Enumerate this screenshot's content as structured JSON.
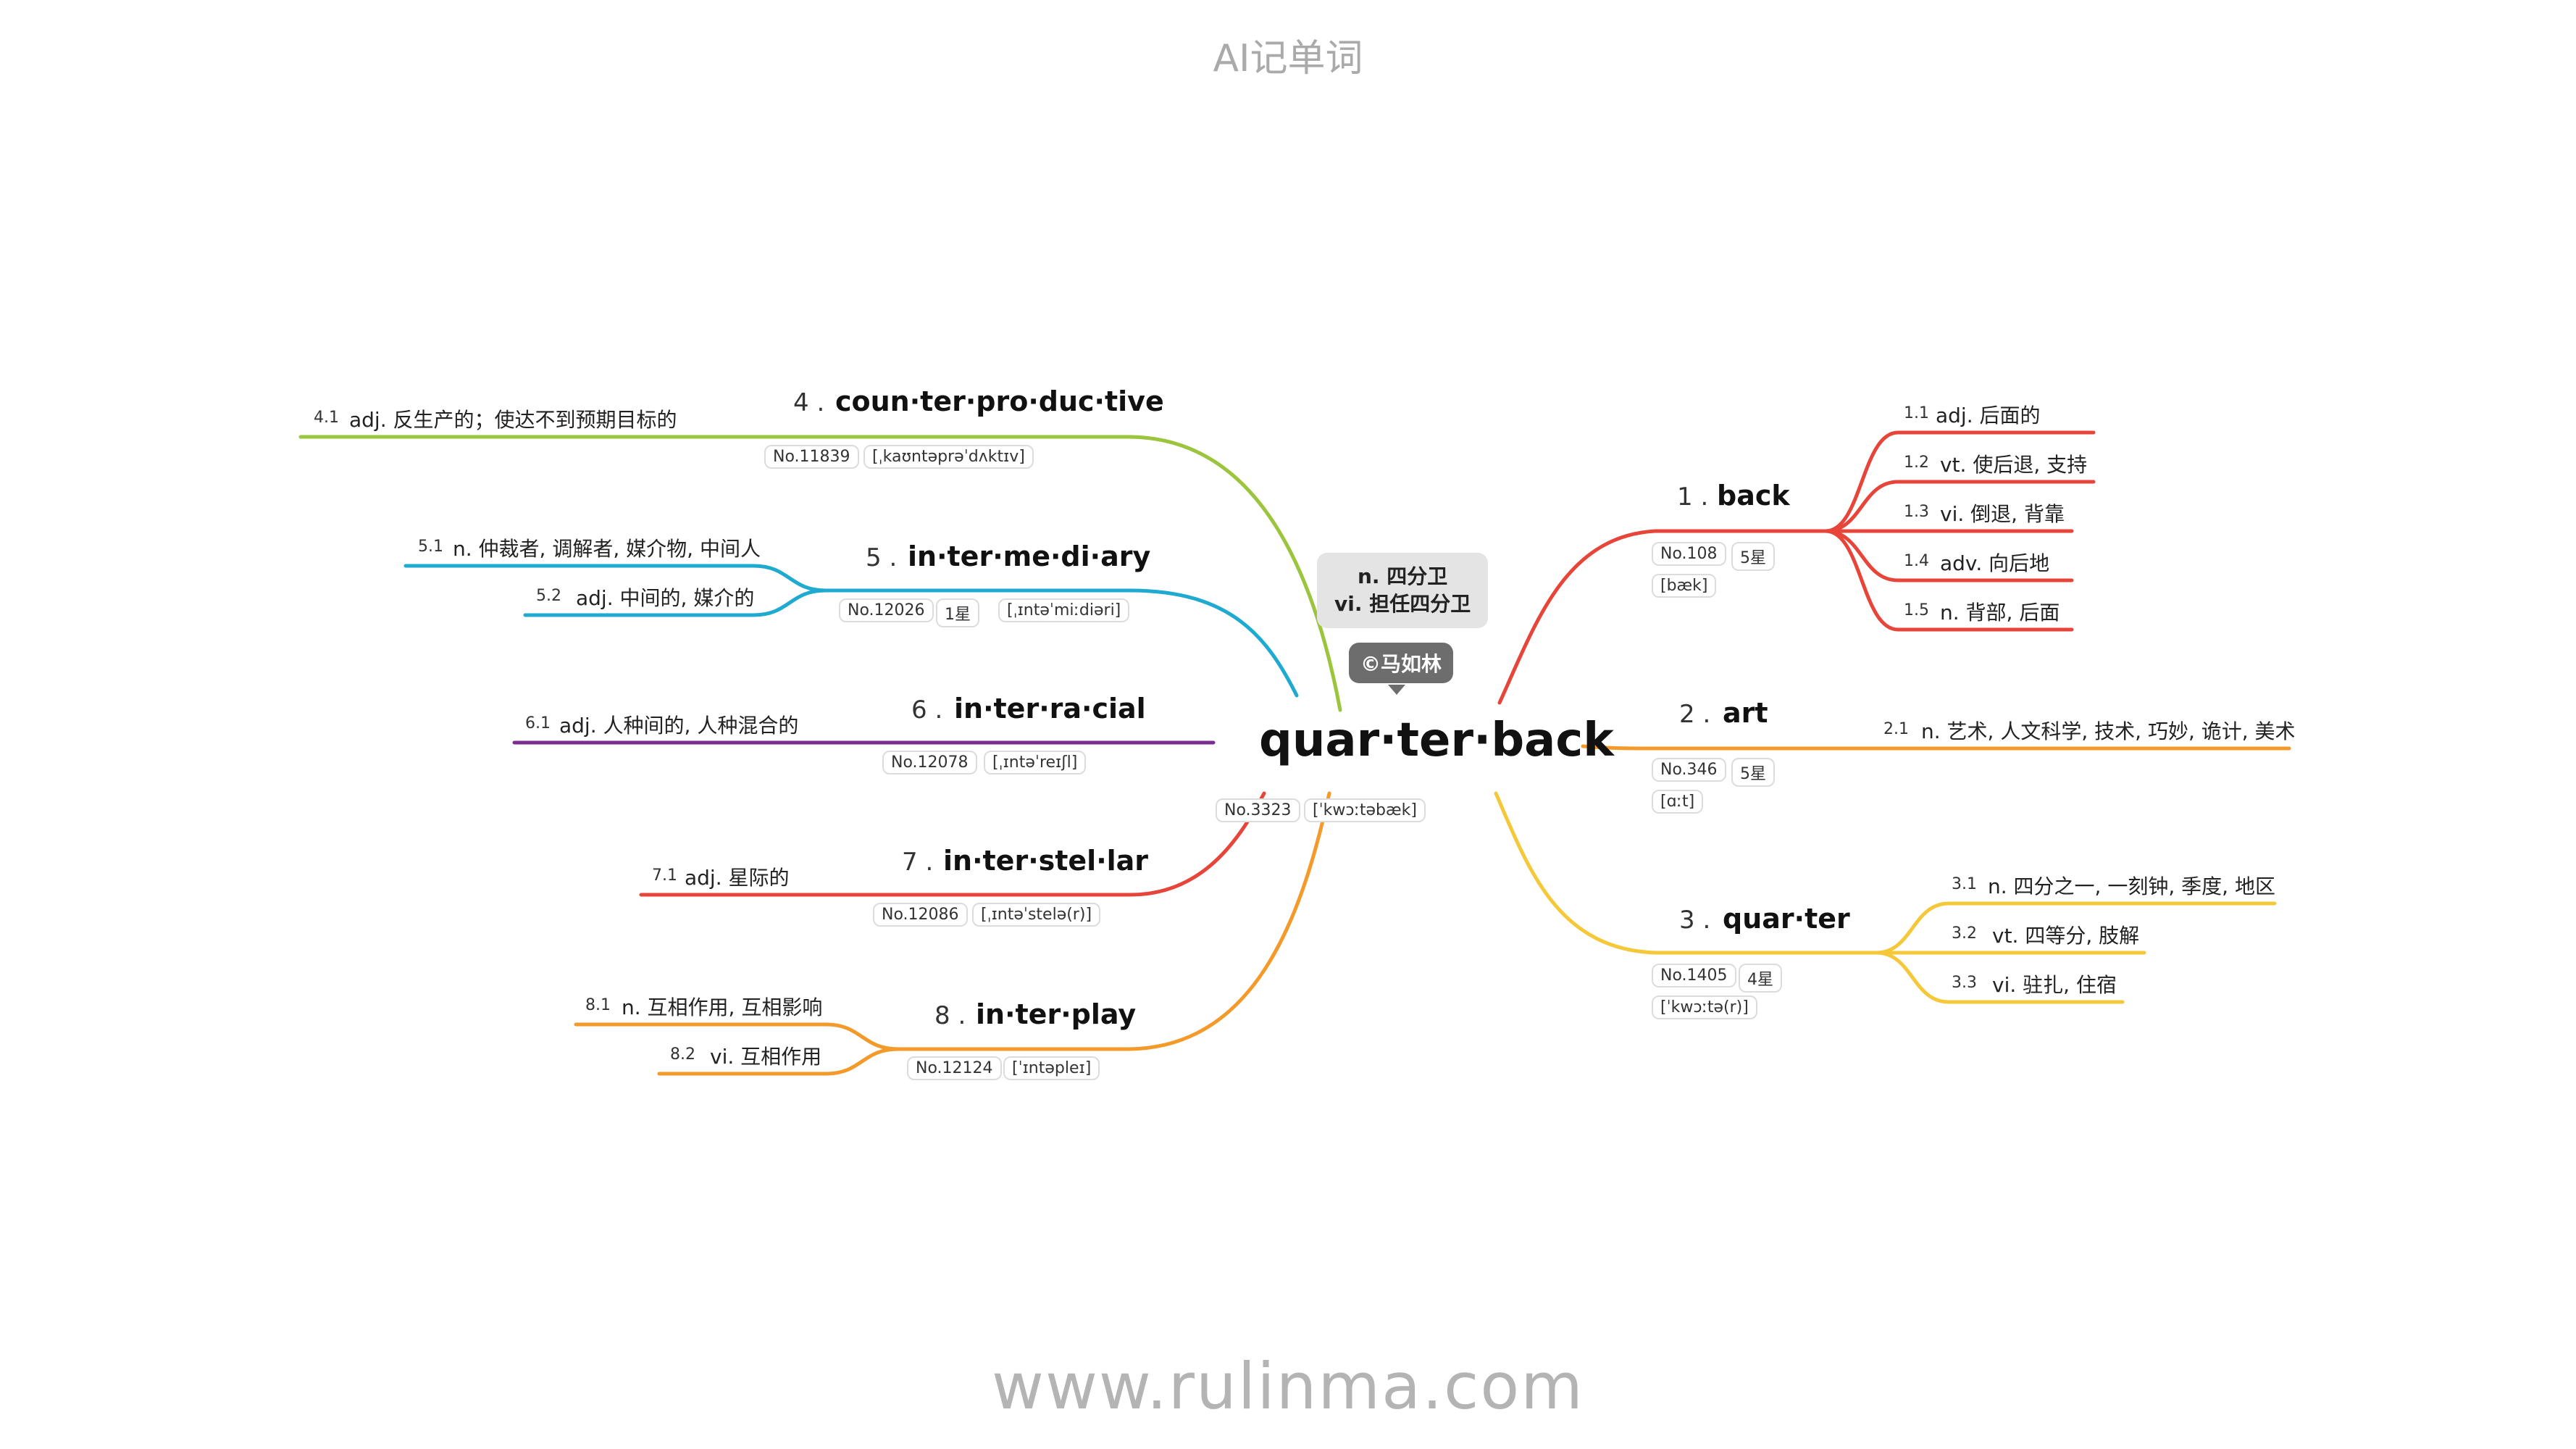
{
  "page": {
    "title": "AI记单词",
    "footer": "www.rulinma.com"
  },
  "center": {
    "word": "quar·ter·back",
    "meaning_line1": "n. 四分卫",
    "meaning_line2": "vi. 担任四分卫",
    "copyright": "©马如林",
    "number": "No.3323",
    "phonetic": "[ˈkwɔːtəbæk]"
  },
  "colors": {
    "back": "#e8453a",
    "art": "#f39a2b",
    "quarter": "#f5c83a",
    "counterproductive": "#9bc53d",
    "intermediary": "#1eaad1",
    "interracial": "#7b2e8f",
    "interstellar": "#e8453a",
    "interplay": "#f39a2b"
  },
  "branches": {
    "back": {
      "num": "1 .",
      "word": "back",
      "no": "No.108",
      "stars": "5星",
      "phonetic": "[bæk]",
      "senses": [
        {
          "num": "1.1",
          "text": "adj. 后面的"
        },
        {
          "num": "1.2",
          "text": "vt. 使后退, 支持"
        },
        {
          "num": "1.3",
          "text": "vi. 倒退, 背靠"
        },
        {
          "num": "1.4",
          "text": "adv. 向后地"
        },
        {
          "num": "1.5",
          "text": "n. 背部, 后面"
        }
      ]
    },
    "art": {
      "num": "2 .",
      "word": "art",
      "no": "No.346",
      "stars": "5星",
      "phonetic": "[ɑːt]",
      "senses": [
        {
          "num": "2.1",
          "text": "n. 艺术, 人文科学, 技术, 巧妙, 诡计, 美术"
        }
      ]
    },
    "quarter": {
      "num": "3 .",
      "word": "quar·ter",
      "no": "No.1405",
      "stars": "4星",
      "phonetic": "[ˈkwɔːtə(r)]",
      "senses": [
        {
          "num": "3.1",
          "text": "n. 四分之一, 一刻钟, 季度, 地区"
        },
        {
          "num": "3.2",
          "text": "vt. 四等分, 肢解"
        },
        {
          "num": "3.3",
          "text": "vi. 驻扎, 住宿"
        }
      ]
    },
    "counterproductive": {
      "num": "4 .",
      "word": "coun·ter·pro·duc·tive",
      "no": "No.11839",
      "phonetic": "[ˌkaʊntəprəˈdʌktɪv]",
      "senses": [
        {
          "num": "4.1",
          "text": "adj. 反生产的；使达不到预期目标的"
        }
      ]
    },
    "intermediary": {
      "num": "5 .",
      "word": "in·ter·me·di·ary",
      "no": "No.12026",
      "stars": "1星",
      "phonetic": "[ˌɪntəˈmiːdiəri]",
      "senses": [
        {
          "num": "5.1",
          "text": "n. 仲裁者, 调解者, 媒介物, 中间人"
        },
        {
          "num": "5.2",
          "text": "adj. 中间的, 媒介的"
        }
      ]
    },
    "interracial": {
      "num": "6 .",
      "word": "in·ter·ra·cial",
      "no": "No.12078",
      "phonetic": "[ˌɪntəˈreɪʃl]",
      "senses": [
        {
          "num": "6.1",
          "text": "adj. 人种间的, 人种混合的"
        }
      ]
    },
    "interstellar": {
      "num": "7 .",
      "word": "in·ter·stel·lar",
      "no": "No.12086",
      "phonetic": "[ˌɪntəˈstelə(r)]",
      "senses": [
        {
          "num": "7.1",
          "text": "adj. 星际的"
        }
      ]
    },
    "interplay": {
      "num": "8 .",
      "word": "in·ter·play",
      "no": "No.12124",
      "phonetic": "[ˈɪntəpleɪ]",
      "senses": [
        {
          "num": "8.1",
          "text": "n. 互相作用, 互相影响"
        },
        {
          "num": "8.2",
          "text": "vi. 互相作用"
        }
      ]
    }
  }
}
